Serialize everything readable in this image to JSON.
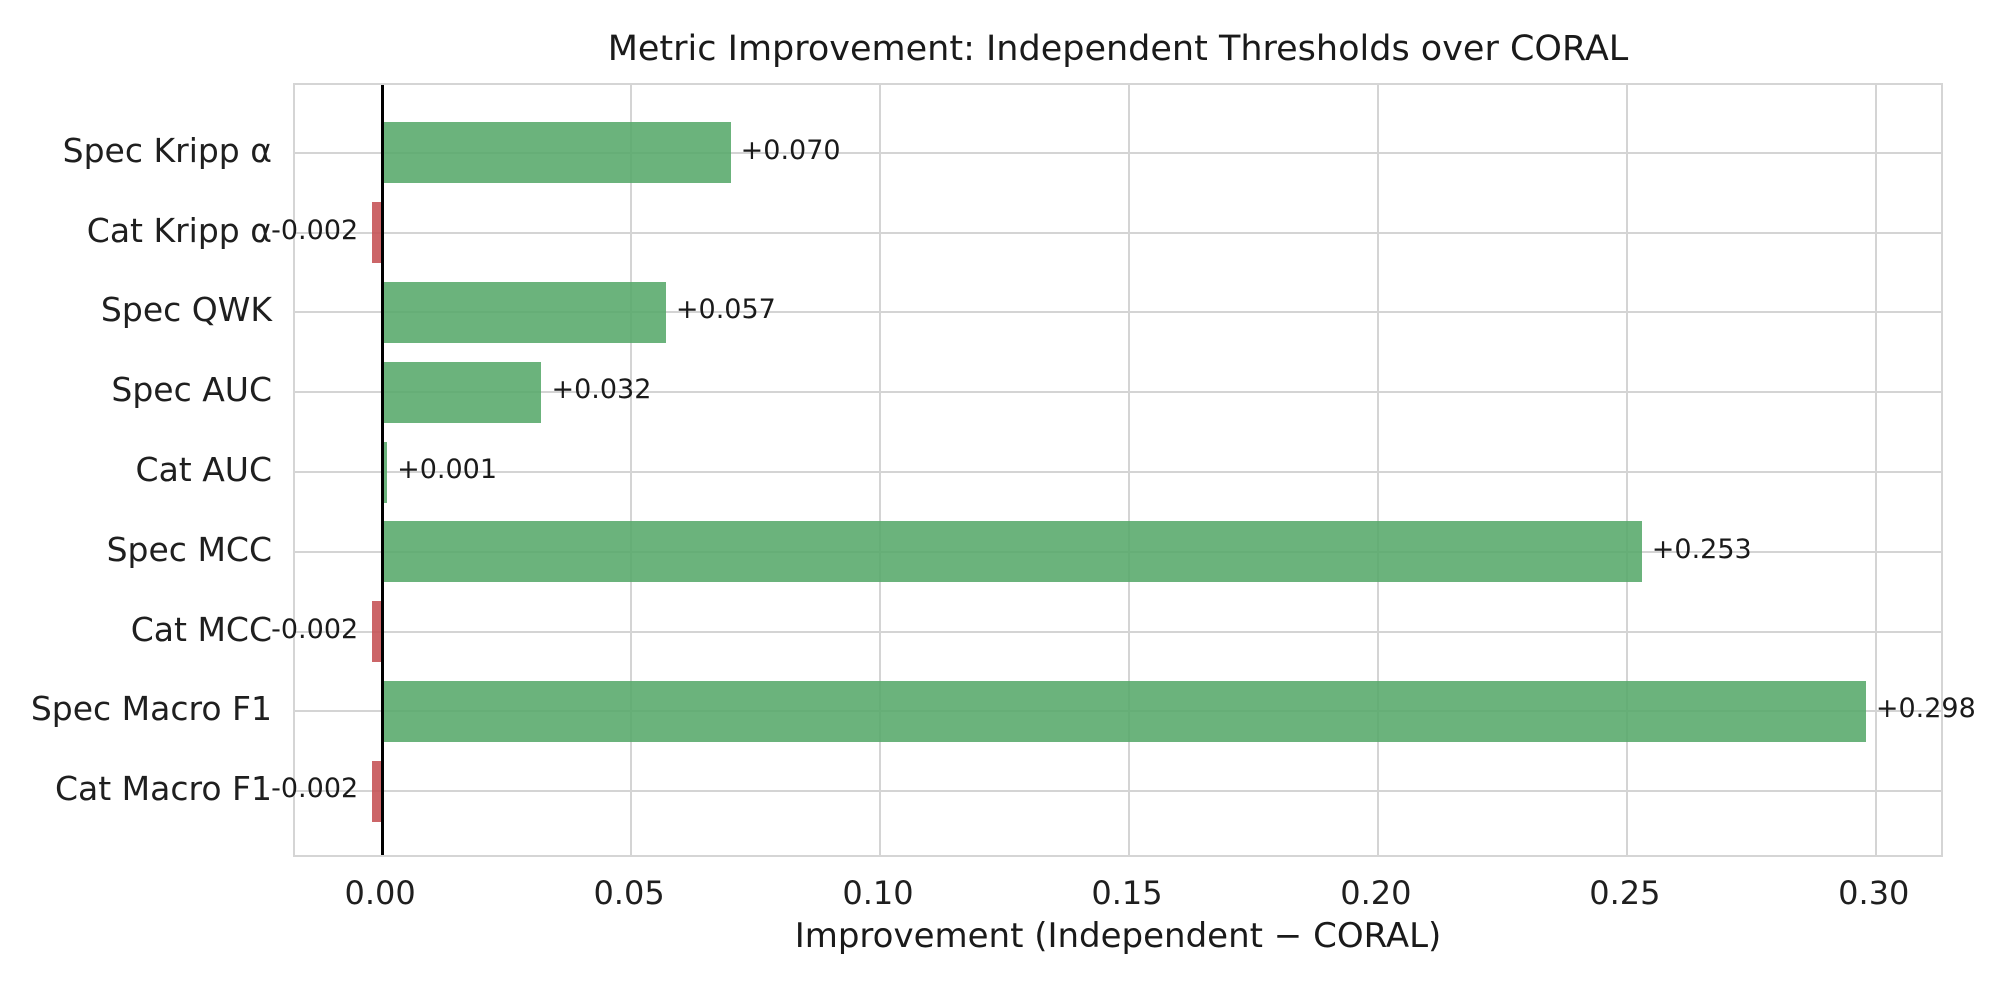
{
  "chart_data": {
    "type": "bar",
    "orientation": "horizontal",
    "title": "Metric Improvement: Independent Thresholds over CORAL",
    "xlabel": "Improvement (Independent − CORAL)",
    "ylabel": "",
    "categories": [
      "Spec Kripp α",
      "Cat Kripp α",
      "Spec QWK",
      "Spec AUC",
      "Cat AUC",
      "Spec MCC",
      "Cat MCC",
      "Spec Macro F1",
      "Cat Macro F1"
    ],
    "values": [
      0.07,
      -0.002,
      0.057,
      0.032,
      0.001,
      0.253,
      -0.002,
      0.298,
      -0.002
    ],
    "bar_labels": [
      "+0.070",
      "-0.002",
      "+0.057",
      "+0.032",
      "+0.001",
      "+0.253",
      "-0.002",
      "+0.298",
      "-0.002"
    ],
    "xlim": [
      -0.0175,
      0.3139
    ],
    "xticks": [
      0.0,
      0.05,
      0.1,
      0.15,
      0.2,
      0.25,
      0.3
    ],
    "xtick_labels": [
      "0.00",
      "0.05",
      "0.10",
      "0.15",
      "0.20",
      "0.25",
      "0.30"
    ],
    "grid": true,
    "legend": "none",
    "colors": {
      "positive_bar": "rgba(85,168,104,0.87)",
      "negative_bar": "rgba(196,78,82,0.87)",
      "positive_bar_hex": "#55a868",
      "negative_bar_hex": "#c44e52",
      "gridline": "#d4d4d4",
      "plot_border": "#d5d5d5",
      "zero_line": "#000000",
      "text": "#1a1a1a"
    }
  }
}
